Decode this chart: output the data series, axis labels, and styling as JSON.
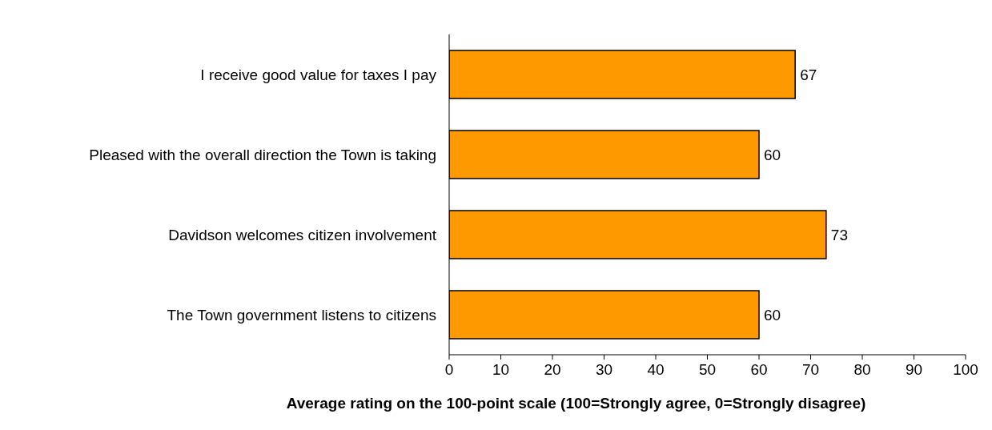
{
  "chart_data": {
    "type": "bar",
    "orientation": "horizontal",
    "categories": [
      "I receive good value for taxes I pay",
      "Pleased with the overall direction the Town is taking",
      "Davidson welcomes citizen involvement",
      "The Town government listens to citizens"
    ],
    "values": [
      67,
      60,
      73,
      60
    ],
    "color": "#ff9900",
    "xlim": [
      0,
      100
    ],
    "xticks": [
      0,
      10,
      20,
      30,
      40,
      50,
      60,
      70,
      80,
      90,
      100
    ],
    "xlabel": "Average rating on the 100-point scale (100=Strongly agree, 0=Strongly disagree)",
    "data_labels": true
  }
}
